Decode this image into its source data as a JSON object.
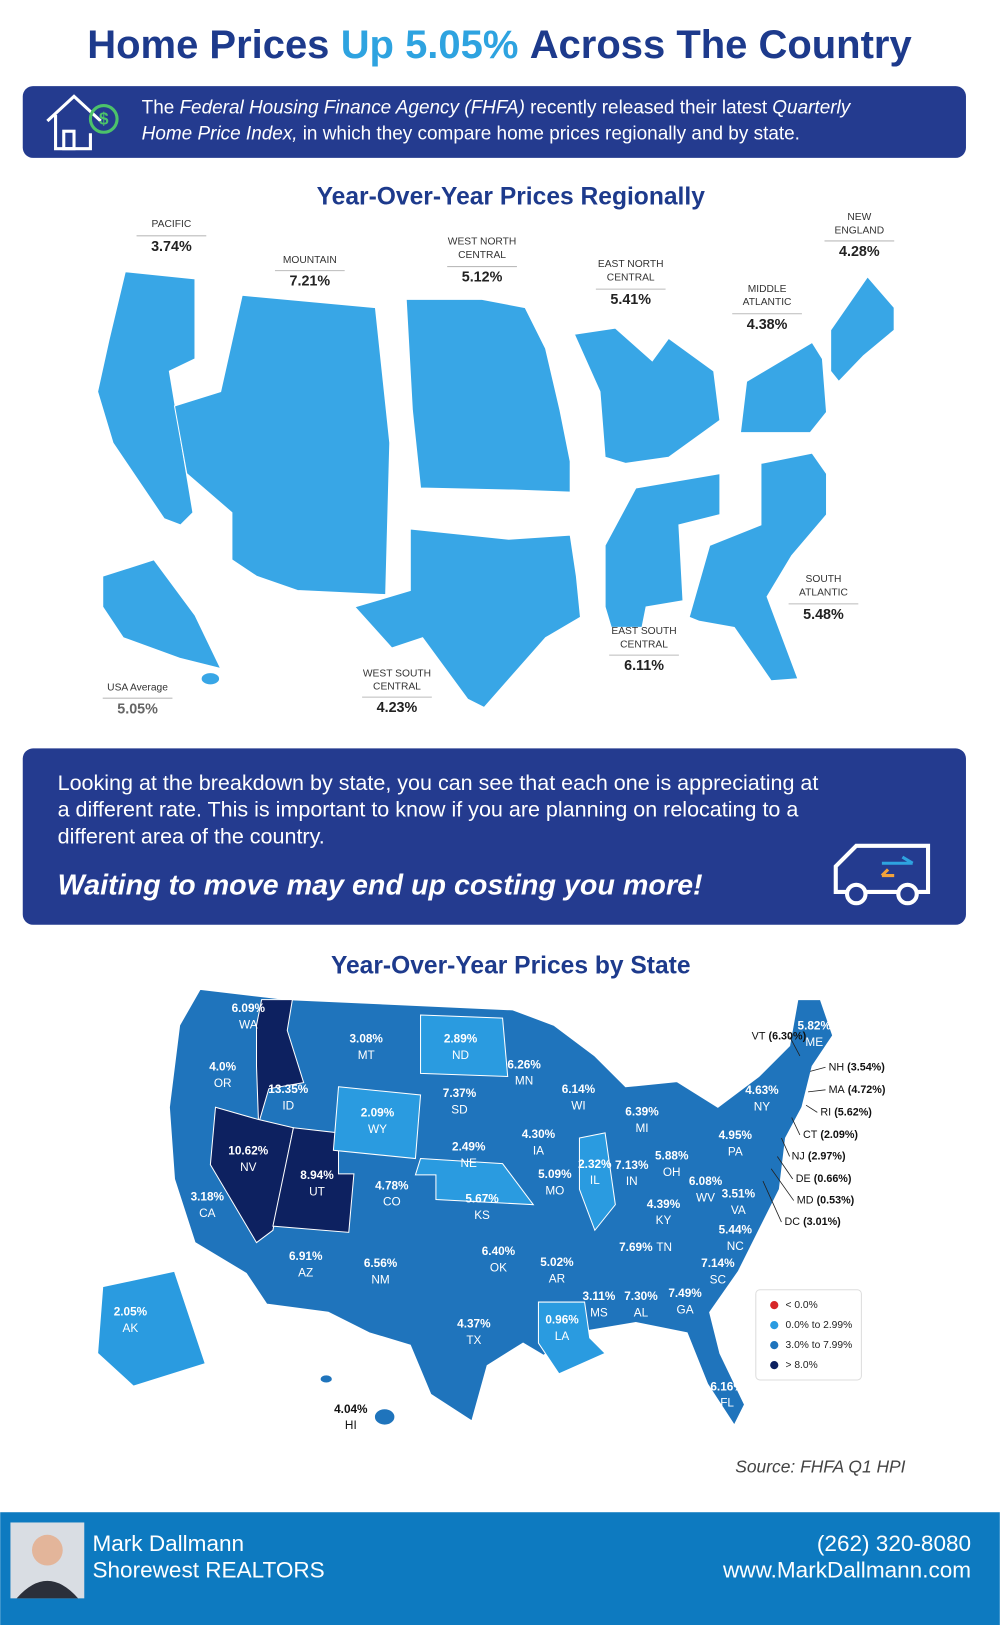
{
  "header": {
    "title": [
      {
        "text": "Home Prices",
        "highlight": false
      },
      {
        "text": "Up 5.05%",
        "highlight": true
      },
      {
        "text": "Across The Country",
        "highlight": false
      }
    ],
    "intro": [
      [
        {
          "text": "The"
        },
        {
          "text": "Federal Housing Finance Agency (FHFA)",
          "italic": true
        },
        {
          "text": "recently released their latest"
        },
        {
          "text": "Quarterly",
          "italic": true
        }
      ],
      [
        {
          "text": "Home Price Index,",
          "italic": true
        },
        {
          "text": "in which they compare home prices regionally and by state."
        }
      ]
    ]
  },
  "regional": {
    "heading": "Year-Over-Year Prices Regionally",
    "regions": [
      {
        "name": [
          "PACIFIC"
        ],
        "value": "3.74%"
      },
      {
        "name": [
          "MOUNTAIN"
        ],
        "value": "7.21%"
      },
      {
        "name": [
          "WEST NORTH",
          "CENTRAL"
        ],
        "value": "5.12%"
      },
      {
        "name": [
          "EAST NORTH",
          "CENTRAL"
        ],
        "value": "5.41%"
      },
      {
        "name": [
          "MIDDLE",
          "ATLANTIC"
        ],
        "value": "4.38%"
      },
      {
        "name": [
          "NEW",
          "ENGLAND"
        ],
        "value": "4.28%"
      },
      {
        "name": [
          "SOUTH",
          "ATLANTIC"
        ],
        "value": "5.48%"
      },
      {
        "name": [
          "EAST SOUTH",
          "CENTRAL"
        ],
        "value": "6.11%"
      },
      {
        "name": [
          "WEST SOUTH",
          "CENTRAL"
        ],
        "value": "4.23%"
      }
    ],
    "average": {
      "name": "USA Average",
      "value": "5.05%"
    }
  },
  "message": {
    "lines": [
      "Looking at the breakdown by state, you can see that each one is appreciating at",
      "a different rate. This is important to know if you are planning on relocating to a",
      "different area of the country."
    ],
    "tagline": "Waiting to move may end up costing you more!"
  },
  "state_map": {
    "heading": "Year-Over-Year Prices by State",
    "states": [
      {
        "abbr": "WA",
        "value": "6.09%",
        "color": "#1f74bc"
      },
      {
        "abbr": "OR",
        "value": "4.0%",
        "color": "#1f74bc"
      },
      {
        "abbr": "ID",
        "value": "13.35%",
        "color": "#0d2160"
      },
      {
        "abbr": "NV",
        "value": "10.62%",
        "color": "#0d2160"
      },
      {
        "abbr": "UT",
        "value": "8.94%",
        "color": "#0d2160"
      },
      {
        "abbr": "CA",
        "value": "3.18%",
        "color": "#1f74bc"
      },
      {
        "abbr": "MT",
        "value": "3.08%",
        "color": "#1f74bc"
      },
      {
        "abbr": "ND",
        "value": "2.89%",
        "color": "#2a9be0"
      },
      {
        "abbr": "WY",
        "value": "2.09%",
        "color": "#2a9be0"
      },
      {
        "abbr": "SD",
        "value": "7.37%",
        "color": "#1f74bc"
      },
      {
        "abbr": "NE",
        "value": "2.49%",
        "color": "#2a9be0"
      },
      {
        "abbr": "CO",
        "value": "4.78%",
        "color": "#1f74bc"
      },
      {
        "abbr": "KS",
        "value": "5.67%",
        "color": "#1f74bc"
      },
      {
        "abbr": "AZ",
        "value": "6.91%",
        "color": "#1f74bc"
      },
      {
        "abbr": "NM",
        "value": "6.56%",
        "color": "#1f74bc"
      },
      {
        "abbr": "OK",
        "value": "6.40%",
        "color": "#1f74bc"
      },
      {
        "abbr": "TX",
        "value": "4.37%",
        "color": "#1f74bc"
      },
      {
        "abbr": "MN",
        "value": "6.26%",
        "color": "#1f74bc"
      },
      {
        "abbr": "IA",
        "value": "4.30%",
        "color": "#1f74bc"
      },
      {
        "abbr": "MO",
        "value": "5.09%",
        "color": "#1f74bc"
      },
      {
        "abbr": "AR",
        "value": "5.02%",
        "color": "#1f74bc"
      },
      {
        "abbr": "LA",
        "value": "0.96%",
        "color": "#2a9be0"
      },
      {
        "abbr": "WI",
        "value": "6.14%",
        "color": "#1f74bc"
      },
      {
        "abbr": "IL",
        "value": "2.32%",
        "color": "#2a9be0"
      },
      {
        "abbr": "MI",
        "value": "6.39%",
        "color": "#1f74bc"
      },
      {
        "abbr": "IN",
        "value": "7.13%",
        "color": "#1f74bc"
      },
      {
        "abbr": "OH",
        "value": "5.88%",
        "color": "#1f74bc"
      },
      {
        "abbr": "KY",
        "value": "4.39%",
        "color": "#1f74bc"
      },
      {
        "abbr": "TN",
        "value": "7.69%",
        "color": "#1f74bc"
      },
      {
        "abbr": "MS",
        "value": "3.11%",
        "color": "#1f74bc"
      },
      {
        "abbr": "AL",
        "value": "7.30%",
        "color": "#1f74bc"
      },
      {
        "abbr": "GA",
        "value": "7.49%",
        "color": "#1f74bc"
      },
      {
        "abbr": "FL",
        "value": "6.16%",
        "color": "#1f74bc"
      },
      {
        "abbr": "SC",
        "value": "7.14%",
        "color": "#1f74bc"
      },
      {
        "abbr": "NC",
        "value": "5.44%",
        "color": "#1f74bc"
      },
      {
        "abbr": "VA",
        "value": "3.51%",
        "color": "#1f74bc"
      },
      {
        "abbr": "WV",
        "value": "6.08%",
        "color": "#1f74bc"
      },
      {
        "abbr": "PA",
        "value": "4.95%",
        "color": "#1f74bc"
      },
      {
        "abbr": "NY",
        "value": "4.63%",
        "color": "#1f74bc"
      },
      {
        "abbr": "ME",
        "value": "5.82%",
        "color": "#1f74bc"
      },
      {
        "abbr": "AK",
        "value": "2.05%",
        "color": "#2a9be0"
      },
      {
        "abbr": "HI",
        "value": "4.04%",
        "color": "#1f74bc"
      }
    ],
    "callouts": [
      {
        "abbr": "VT",
        "value": "(6.30%)"
      },
      {
        "abbr": "NH",
        "value": "(3.54%)"
      },
      {
        "abbr": "MA",
        "value": "(4.72%)"
      },
      {
        "abbr": "RI",
        "value": "(5.62%)"
      },
      {
        "abbr": "CT",
        "value": "(2.09%)"
      },
      {
        "abbr": "NJ",
        "value": "(2.97%)"
      },
      {
        "abbr": "DE",
        "value": "(0.66%)"
      },
      {
        "abbr": "MD",
        "value": "(0.53%)"
      },
      {
        "abbr": "DC",
        "value": "(3.01%)"
      }
    ],
    "legend": [
      {
        "label": "< 0.0%",
        "color": "#d62728"
      },
      {
        "label": "0.0% to 2.99%",
        "color": "#2a9be0"
      },
      {
        "label": "3.0% to 7.99%",
        "color": "#1f74bc"
      },
      {
        "label": "> 8.0%",
        "color": "#0d2160"
      }
    ],
    "source": "Source: FHFA Q1 HPI"
  },
  "footer": {
    "agent": "Mark Dallmann",
    "company": "Shorewest REALTORS",
    "phone": "(262) 320-8080",
    "website": "www.MarkDallmann.com"
  }
}
